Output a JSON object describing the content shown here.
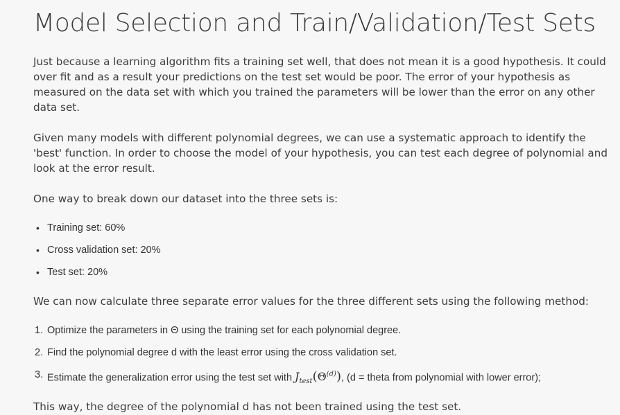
{
  "title": "Model Selection and Train/Validation/Test Sets",
  "paragraphs": {
    "intro": "Just because a learning algorithm fits a training set well, that does not mean it is a good hypothesis. It could over fit and as a result your predictions on the test set would be poor. The error of your hypothesis as measured on the data set with which you trained the parameters will be lower than the error on any other data set.",
    "models": "Given many models with different polynomial degrees, we can use a systematic approach to identify the 'best' function. In order to choose the model of your hypothesis, you can test each degree of polynomial and look at the error result.",
    "breakdown": "One way to break down our dataset into the three sets is:",
    "calculate": "We can now calculate three separate error values for the three different sets using the following method:",
    "conclusion": "This way, the degree of the polynomial d has not been trained using the test set."
  },
  "split_items": [
    "Training set: 60%",
    "Cross validation set: 20%",
    "Test set: 20%"
  ],
  "steps": [
    "Optimize the parameters in Θ using the training set for each polynomial degree.",
    "Find the polynomial degree d with the least error using the cross validation set.",
    "Estimate the generalization error using the test set with"
  ],
  "step3_math": {
    "J": "J",
    "sub": "test",
    "open": "(",
    "theta": "Θ",
    "sup": "(d)",
    "close": ")"
  },
  "step3_suffix": ", (d = theta from polynomial with lower error);",
  "bullet_glyph": "•",
  "number_labels": [
    "1.",
    "2.",
    "3."
  ]
}
